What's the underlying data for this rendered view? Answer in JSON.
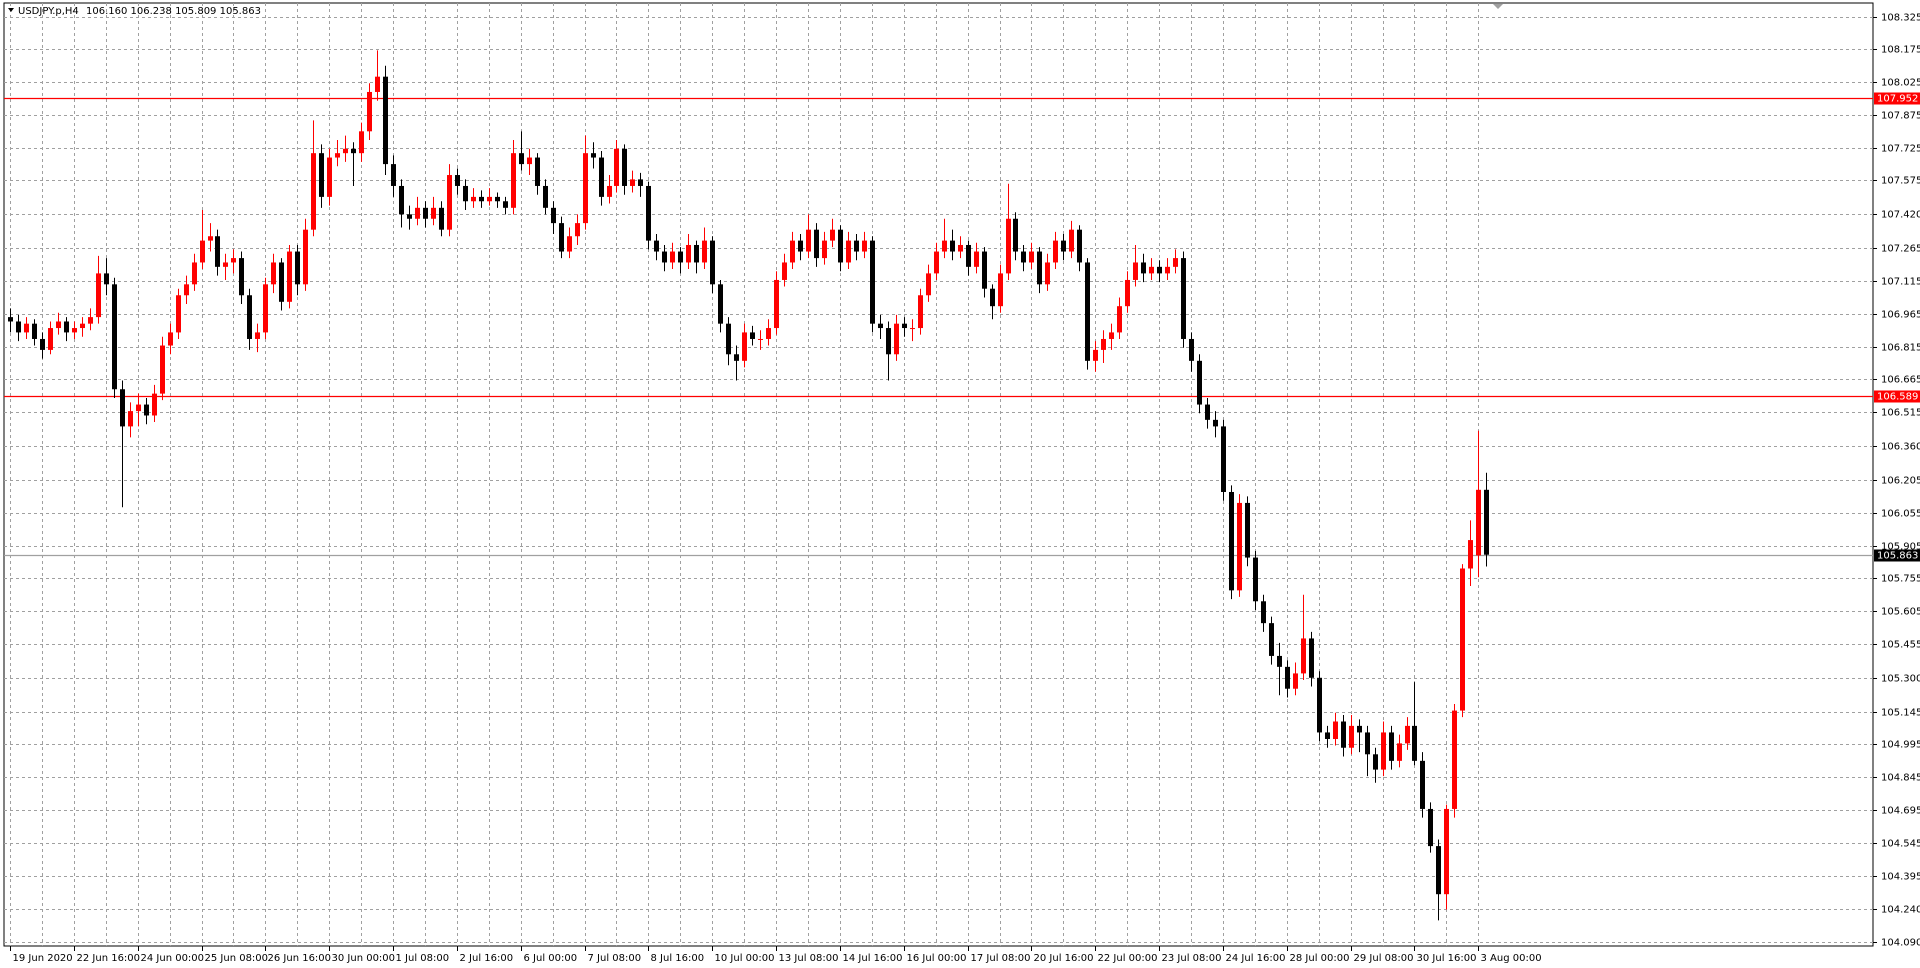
{
  "chart_data": {
    "type": "candlestick",
    "title": "USDJPY.p,H4",
    "quote": "106.160 106.238 105.809 105.863",
    "bull_color": "#ff0000",
    "bear_color": "#000000",
    "grid": true,
    "ylim": [
      104.073,
      108.387
    ],
    "yticks": [
      108.325,
      108.175,
      108.025,
      107.875,
      107.725,
      107.575,
      {
        "value": 107.42,
        "label": "107.420"
      },
      107.265,
      107.115,
      106.965,
      106.815,
      106.665,
      106.515,
      {
        "value": 106.36,
        "label": "106.360"
      },
      106.205,
      106.055,
      105.905,
      105.755,
      105.605,
      105.455,
      {
        "value": 105.3,
        "label": "105.300"
      },
      105.145,
      104.995,
      104.845,
      104.695,
      104.545,
      104.395,
      {
        "value": 104.24,
        "label": "104.240"
      },
      {
        "value": 104.09,
        "label": "104.090"
      }
    ],
    "hlines": [
      {
        "value": 107.952,
        "color": "#ff0000",
        "label_bg": "#ff0000"
      },
      {
        "value": 106.589,
        "color": "#ff0000",
        "label_bg": "#ff0000"
      },
      {
        "value": 105.863,
        "color": "#a0a0a0",
        "label_bg": "#000000"
      }
    ],
    "categories": [
      "19 Jun 2020",
      null,
      null,
      null,
      null,
      null,
      null,
      null,
      "22 Jun 16:00",
      null,
      null,
      null,
      null,
      null,
      null,
      null,
      "24 Jun 00:00",
      null,
      null,
      null,
      null,
      null,
      null,
      null,
      "25 Jun 08:00",
      null,
      null,
      null,
      null,
      null,
      null,
      null,
      "26 Jun 16:00",
      null,
      null,
      null,
      null,
      null,
      null,
      null,
      "30 Jun 00:00",
      null,
      null,
      null,
      null,
      null,
      null,
      null,
      "1 Jul 08:00",
      null,
      null,
      null,
      null,
      null,
      null,
      null,
      "2 Jul 16:00",
      null,
      null,
      null,
      null,
      null,
      null,
      null,
      "6 Jul 00:00",
      null,
      null,
      null,
      null,
      null,
      null,
      null,
      "7 Jul 08:00",
      null,
      null,
      null,
      null,
      null,
      null,
      null,
      "8 Jul 16:00",
      null,
      null,
      null,
      null,
      null,
      null,
      null,
      "10 Jul 00:00",
      null,
      null,
      null,
      null,
      null,
      null,
      null,
      "13 Jul 08:00",
      null,
      null,
      null,
      null,
      null,
      null,
      null,
      "14 Jul 16:00",
      null,
      null,
      null,
      null,
      null,
      null,
      null,
      "16 Jul 00:00",
      null,
      null,
      null,
      null,
      null,
      null,
      null,
      "17 Jul 08:00",
      null,
      null,
      null,
      null,
      null,
      null,
      null,
      "20 Jul 16:00",
      null,
      null,
      null,
      null,
      null,
      null,
      null,
      "22 Jul 00:00",
      null,
      null,
      null,
      null,
      null,
      null,
      null,
      "23 Jul 08:00",
      null,
      null,
      null,
      null,
      null,
      null,
      null,
      "24 Jul 16:00",
      null,
      null,
      null,
      null,
      null,
      null,
      null,
      "28 Jul 00:00",
      null,
      null,
      null,
      null,
      null,
      null,
      null,
      "29 Jul 08:00",
      null,
      null,
      null,
      null,
      null,
      null,
      null,
      "30 Jul 16:00",
      null,
      null,
      null,
      null,
      null,
      null,
      null,
      "3 Aug 00:00",
      null
    ],
    "candles": [
      [
        106.95,
        106.99,
        106.88,
        106.93
      ],
      [
        106.93,
        106.96,
        106.84,
        106.88
      ],
      [
        106.88,
        106.95,
        106.85,
        106.92
      ],
      [
        106.92,
        106.94,
        106.82,
        106.85
      ],
      [
        106.85,
        106.88,
        106.76,
        106.8
      ],
      [
        106.8,
        106.93,
        106.78,
        106.9
      ],
      [
        106.9,
        106.97,
        106.87,
        106.93
      ],
      [
        106.93,
        106.95,
        106.84,
        106.88
      ],
      [
        106.88,
        106.93,
        106.85,
        106.9
      ],
      [
        106.9,
        106.95,
        106.86,
        106.92
      ],
      [
        106.92,
        106.99,
        106.89,
        106.95
      ],
      [
        106.95,
        107.23,
        106.92,
        107.15
      ],
      [
        107.15,
        107.22,
        107.05,
        107.1
      ],
      [
        107.1,
        107.13,
        106.58,
        106.62
      ],
      [
        106.62,
        106.66,
        106.08,
        106.45
      ],
      [
        106.45,
        106.56,
        106.4,
        106.52
      ],
      [
        106.52,
        106.6,
        106.45,
        106.55
      ],
      [
        106.55,
        106.58,
        106.46,
        106.5
      ],
      [
        106.5,
        106.64,
        106.47,
        106.6
      ],
      [
        106.6,
        106.86,
        106.57,
        106.82
      ],
      [
        106.82,
        106.92,
        106.78,
        106.88
      ],
      [
        106.88,
        107.08,
        106.85,
        107.05
      ],
      [
        107.05,
        107.14,
        107.01,
        107.1
      ],
      [
        107.1,
        107.24,
        107.07,
        107.2
      ],
      [
        107.2,
        107.44,
        107.17,
        107.3
      ],
      [
        107.3,
        107.38,
        107.25,
        107.32
      ],
      [
        107.32,
        107.35,
        107.14,
        107.18
      ],
      [
        107.18,
        107.24,
        107.12,
        107.2
      ],
      [
        107.2,
        107.26,
        107.15,
        107.22
      ],
      [
        107.22,
        107.25,
        107.01,
        107.05
      ],
      [
        107.05,
        107.08,
        106.8,
        106.85
      ],
      [
        106.85,
        106.92,
        106.79,
        106.88
      ],
      [
        106.88,
        107.13,
        106.85,
        107.1
      ],
      [
        107.1,
        107.24,
        107.06,
        107.2
      ],
      [
        107.2,
        107.22,
        106.98,
        107.02
      ],
      [
        107.02,
        107.28,
        106.99,
        107.25
      ],
      [
        107.25,
        107.28,
        107.05,
        107.1
      ],
      [
        107.1,
        107.4,
        107.07,
        107.35
      ],
      [
        107.35,
        107.85,
        107.32,
        107.7
      ],
      [
        107.7,
        107.74,
        107.45,
        107.5
      ],
      [
        107.5,
        107.72,
        107.46,
        107.68
      ],
      [
        107.68,
        107.76,
        107.64,
        107.7
      ],
      [
        107.7,
        107.78,
        107.66,
        107.72
      ],
      [
        107.72,
        107.75,
        107.55,
        107.7
      ],
      [
        107.7,
        107.84,
        107.66,
        107.8
      ],
      [
        107.8,
        108.02,
        107.76,
        107.98
      ],
      [
        107.98,
        108.17,
        107.94,
        108.05
      ],
      [
        108.05,
        108.1,
        107.6,
        107.65
      ],
      [
        107.65,
        107.69,
        107.5,
        107.55
      ],
      [
        107.55,
        107.58,
        107.36,
        107.42
      ],
      [
        107.42,
        107.46,
        107.35,
        107.4
      ],
      [
        107.4,
        107.5,
        107.37,
        107.45
      ],
      [
        107.45,
        107.48,
        107.36,
        107.4
      ],
      [
        107.4,
        107.5,
        107.37,
        107.45
      ],
      [
        107.45,
        107.48,
        107.32,
        107.35
      ],
      [
        107.35,
        107.65,
        107.32,
        107.6
      ],
      [
        107.6,
        107.63,
        107.51,
        107.55
      ],
      [
        107.55,
        107.58,
        107.44,
        107.48
      ],
      [
        107.48,
        107.54,
        107.45,
        107.5
      ],
      [
        107.5,
        107.53,
        107.45,
        107.48
      ],
      [
        107.48,
        107.54,
        107.46,
        107.5
      ],
      [
        107.5,
        107.52,
        107.45,
        107.48
      ],
      [
        107.48,
        107.5,
        107.42,
        107.45
      ],
      [
        107.45,
        107.76,
        107.42,
        107.7
      ],
      [
        107.7,
        107.8,
        107.62,
        107.65
      ],
      [
        107.65,
        107.72,
        107.6,
        107.68
      ],
      [
        107.68,
        107.7,
        107.51,
        107.55
      ],
      [
        107.55,
        107.58,
        107.42,
        107.45
      ],
      [
        107.45,
        107.48,
        107.33,
        107.38
      ],
      [
        107.38,
        107.41,
        107.22,
        107.25
      ],
      [
        107.25,
        107.36,
        107.22,
        107.32
      ],
      [
        107.32,
        107.42,
        107.28,
        107.38
      ],
      [
        107.38,
        107.78,
        107.35,
        107.7
      ],
      [
        107.7,
        107.75,
        107.63,
        107.68
      ],
      [
        107.68,
        107.71,
        107.46,
        107.5
      ],
      [
        107.5,
        107.6,
        107.47,
        107.55
      ],
      [
        107.55,
        107.76,
        107.52,
        107.72
      ],
      [
        107.72,
        107.74,
        107.51,
        107.55
      ],
      [
        107.55,
        107.62,
        107.52,
        107.58
      ],
      [
        107.58,
        107.61,
        107.5,
        107.55
      ],
      [
        107.55,
        107.57,
        107.26,
        107.3
      ],
      [
        107.3,
        107.33,
        107.21,
        107.25
      ],
      [
        107.25,
        107.28,
        107.16,
        107.2
      ],
      [
        107.2,
        107.29,
        107.17,
        107.25
      ],
      [
        107.25,
        107.27,
        107.15,
        107.2
      ],
      [
        107.2,
        107.33,
        107.17,
        107.28
      ],
      [
        107.28,
        107.3,
        107.15,
        107.2
      ],
      [
        107.2,
        107.36,
        107.17,
        107.3
      ],
      [
        107.3,
        107.32,
        107.06,
        107.1
      ],
      [
        107.1,
        107.12,
        106.88,
        106.92
      ],
      [
        106.92,
        106.95,
        106.73,
        106.78
      ],
      [
        106.78,
        106.82,
        106.66,
        106.75
      ],
      [
        106.75,
        106.92,
        106.72,
        106.88
      ],
      [
        106.88,
        106.91,
        106.82,
        106.85
      ],
      [
        106.85,
        106.89,
        106.8,
        106.85
      ],
      [
        106.85,
        106.94,
        106.82,
        106.9
      ],
      [
        106.9,
        107.16,
        106.87,
        107.12
      ],
      [
        107.12,
        107.24,
        107.09,
        107.2
      ],
      [
        107.2,
        107.34,
        107.17,
        107.3
      ],
      [
        107.3,
        107.33,
        107.21,
        107.25
      ],
      [
        107.25,
        107.42,
        107.22,
        107.35
      ],
      [
        107.35,
        107.38,
        107.18,
        107.22
      ],
      [
        107.22,
        107.34,
        107.19,
        107.3
      ],
      [
        107.3,
        107.4,
        107.27,
        107.35
      ],
      [
        107.35,
        107.37,
        107.16,
        107.2
      ],
      [
        107.2,
        107.34,
        107.17,
        107.3
      ],
      [
        107.3,
        107.33,
        107.21,
        107.25
      ],
      [
        107.25,
        107.34,
        107.22,
        107.3
      ],
      [
        107.3,
        107.32,
        106.88,
        106.92
      ],
      [
        106.92,
        106.96,
        106.85,
        106.9
      ],
      [
        106.9,
        106.93,
        106.66,
        106.78
      ],
      [
        106.78,
        106.96,
        106.75,
        106.92
      ],
      [
        106.92,
        106.95,
        106.86,
        106.9
      ],
      [
        106.9,
        106.94,
        106.84,
        106.9
      ],
      [
        106.9,
        107.08,
        106.87,
        107.05
      ],
      [
        107.05,
        107.19,
        107.02,
        107.15
      ],
      [
        107.15,
        107.29,
        107.12,
        107.25
      ],
      [
        107.25,
        107.4,
        107.22,
        107.3
      ],
      [
        107.3,
        107.35,
        107.21,
        107.25
      ],
      [
        107.25,
        107.32,
        107.22,
        107.28
      ],
      [
        107.28,
        107.3,
        107.14,
        107.18
      ],
      [
        107.18,
        107.29,
        107.15,
        107.25
      ],
      [
        107.25,
        107.27,
        107.04,
        107.08
      ],
      [
        107.08,
        107.1,
        106.94,
        107.0
      ],
      [
        107.0,
        107.19,
        106.97,
        107.15
      ],
      [
        107.15,
        107.56,
        107.12,
        107.4
      ],
      [
        107.4,
        107.43,
        107.21,
        107.25
      ],
      [
        107.25,
        107.28,
        107.16,
        107.2
      ],
      [
        107.2,
        107.29,
        107.17,
        107.25
      ],
      [
        107.25,
        107.27,
        107.06,
        107.1
      ],
      [
        107.1,
        107.24,
        107.07,
        107.2
      ],
      [
        107.2,
        107.34,
        107.17,
        107.3
      ],
      [
        107.3,
        107.33,
        107.21,
        107.25
      ],
      [
        107.25,
        107.39,
        107.22,
        107.35
      ],
      [
        107.35,
        107.37,
        107.16,
        107.2
      ],
      [
        107.2,
        107.22,
        106.71,
        106.75
      ],
      [
        106.75,
        106.84,
        106.7,
        106.8
      ],
      [
        106.8,
        106.89,
        106.74,
        106.85
      ],
      [
        106.85,
        106.92,
        106.8,
        106.88
      ],
      [
        106.88,
        107.04,
        106.85,
        107.0
      ],
      [
        107.0,
        107.16,
        106.97,
        107.12
      ],
      [
        107.12,
        107.28,
        107.09,
        107.2
      ],
      [
        107.2,
        107.24,
        107.11,
        107.15
      ],
      [
        107.15,
        107.22,
        107.12,
        107.18
      ],
      [
        107.18,
        107.21,
        107.11,
        107.15
      ],
      [
        107.15,
        107.22,
        107.12,
        107.18
      ],
      [
        107.18,
        107.26,
        107.15,
        107.22
      ],
      [
        107.22,
        107.25,
        106.81,
        106.85
      ],
      [
        106.85,
        106.88,
        106.7,
        106.75
      ],
      [
        106.75,
        106.78,
        106.51,
        106.55
      ],
      [
        106.55,
        106.58,
        106.44,
        106.48
      ],
      [
        106.48,
        106.52,
        106.4,
        106.45
      ],
      [
        106.45,
        106.48,
        106.11,
        106.15
      ],
      [
        106.15,
        106.18,
        105.66,
        105.7
      ],
      [
        105.7,
        106.14,
        105.67,
        106.1
      ],
      [
        106.1,
        106.13,
        105.81,
        105.85
      ],
      [
        105.85,
        105.88,
        105.61,
        105.65
      ],
      [
        105.65,
        105.68,
        105.51,
        105.55
      ],
      [
        105.55,
        105.58,
        105.36,
        105.4
      ],
      [
        105.4,
        105.46,
        105.22,
        105.35
      ],
      [
        105.35,
        105.38,
        105.21,
        105.25
      ],
      [
        105.25,
        105.37,
        105.22,
        105.32
      ],
      [
        105.32,
        105.68,
        105.29,
        105.48
      ],
      [
        105.48,
        105.51,
        105.26,
        105.3
      ],
      [
        105.3,
        105.33,
        105.01,
        105.05
      ],
      [
        105.05,
        105.08,
        104.98,
        105.02
      ],
      [
        105.02,
        105.14,
        104.99,
        105.1
      ],
      [
        105.1,
        105.13,
        104.94,
        104.98
      ],
      [
        104.98,
        105.13,
        104.95,
        105.08
      ],
      [
        105.08,
        105.11,
        104.96,
        105.05
      ],
      [
        105.05,
        105.08,
        104.85,
        104.95
      ],
      [
        104.95,
        104.98,
        104.82,
        104.88
      ],
      [
        104.88,
        105.1,
        104.85,
        105.05
      ],
      [
        105.05,
        105.08,
        104.88,
        104.92
      ],
      [
        104.92,
        105.04,
        104.89,
        105.0
      ],
      [
        105.0,
        105.12,
        104.97,
        105.08
      ],
      [
        105.08,
        105.28,
        104.9,
        104.92
      ],
      [
        104.92,
        104.96,
        104.66,
        104.7
      ],
      [
        104.7,
        104.73,
        104.5,
        104.53
      ],
      [
        104.53,
        104.56,
        104.19,
        104.31
      ],
      [
        104.31,
        104.72,
        104.24,
        104.7
      ],
      [
        104.7,
        105.18,
        104.66,
        105.15
      ],
      [
        105.15,
        105.82,
        105.12,
        105.8
      ],
      [
        105.8,
        106.02,
        105.72,
        105.93
      ],
      [
        105.86,
        106.43,
        105.76,
        106.16
      ],
      [
        106.16,
        106.238,
        105.809,
        105.863
      ]
    ]
  }
}
